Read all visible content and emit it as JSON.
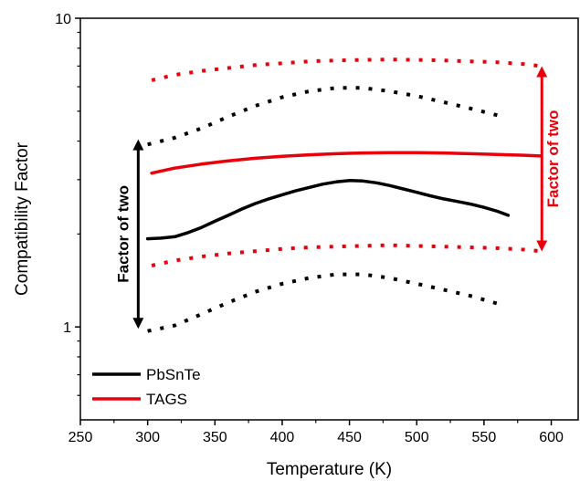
{
  "chart_data": {
    "type": "line",
    "title": "",
    "xlabel": "Temperature (K)",
    "ylabel": "Compatibility Factor",
    "xlim": [
      250,
      620
    ],
    "ylim": [
      0.5,
      10
    ],
    "yscale": "log",
    "xticks": [
      250,
      300,
      350,
      400,
      450,
      500,
      550,
      600
    ],
    "yticks": [
      1,
      10
    ],
    "grid": false,
    "legend_position": "bottom-left",
    "colors": {
      "pbsnte": "#000000",
      "tags": "#e8000b"
    },
    "series": [
      {
        "name": "PbSnTe",
        "key": "pbsnte",
        "style": "solid",
        "x": [
          300,
          310,
          320,
          330,
          340,
          350,
          360,
          370,
          380,
          390,
          400,
          410,
          420,
          430,
          440,
          450,
          460,
          470,
          480,
          490,
          500,
          510,
          520,
          530,
          540,
          550,
          560,
          568
        ],
        "y": [
          1.93,
          1.94,
          1.96,
          2.02,
          2.1,
          2.2,
          2.3,
          2.41,
          2.51,
          2.6,
          2.68,
          2.76,
          2.83,
          2.9,
          2.95,
          2.98,
          2.97,
          2.93,
          2.87,
          2.8,
          2.73,
          2.66,
          2.6,
          2.55,
          2.5,
          2.44,
          2.37,
          2.3
        ]
      },
      {
        "name": "TAGS",
        "key": "tags",
        "style": "solid",
        "x": [
          303,
          320,
          340,
          360,
          380,
          400,
          420,
          440,
          460,
          480,
          500,
          520,
          540,
          560,
          580,
          592
        ],
        "y": [
          3.15,
          3.27,
          3.37,
          3.45,
          3.52,
          3.57,
          3.61,
          3.64,
          3.66,
          3.67,
          3.67,
          3.66,
          3.64,
          3.62,
          3.6,
          3.58
        ]
      },
      {
        "name": "",
        "key": "pbsnte",
        "style": "dotted",
        "x": [
          300,
          320,
          340,
          360,
          380,
          400,
          420,
          440,
          460,
          480,
          500,
          520,
          540,
          560
        ],
        "y": [
          3.9,
          4.1,
          4.4,
          4.8,
          5.2,
          5.55,
          5.8,
          5.95,
          5.95,
          5.8,
          5.6,
          5.35,
          5.1,
          4.85
        ]
      },
      {
        "name": "",
        "key": "pbsnte",
        "style": "dotted",
        "x": [
          300,
          320,
          340,
          360,
          380,
          400,
          420,
          440,
          460,
          480,
          500,
          520,
          540,
          560
        ],
        "y": [
          0.97,
          1.01,
          1.1,
          1.2,
          1.3,
          1.38,
          1.44,
          1.48,
          1.48,
          1.44,
          1.38,
          1.32,
          1.26,
          1.19
        ]
      },
      {
        "name": "",
        "key": "tags",
        "style": "dotted",
        "x": [
          303,
          320,
          340,
          360,
          380,
          400,
          420,
          440,
          460,
          480,
          500,
          520,
          540,
          560,
          580,
          592
        ],
        "y": [
          6.3,
          6.55,
          6.75,
          6.9,
          7.05,
          7.15,
          7.25,
          7.3,
          7.33,
          7.35,
          7.33,
          7.3,
          7.25,
          7.2,
          7.1,
          7.0
        ]
      },
      {
        "name": "",
        "key": "tags",
        "style": "dotted",
        "x": [
          303,
          320,
          340,
          360,
          380,
          400,
          420,
          440,
          460,
          480,
          500,
          520,
          540,
          560,
          580,
          592
        ],
        "y": [
          1.58,
          1.64,
          1.69,
          1.73,
          1.76,
          1.79,
          1.81,
          1.82,
          1.83,
          1.84,
          1.83,
          1.82,
          1.81,
          1.8,
          1.78,
          1.76
        ]
      }
    ],
    "annotations": [
      {
        "text": "Factor of two",
        "key": "pbsnte",
        "x": 293,
        "y_from": 1.0,
        "y_to": 4.0
      },
      {
        "text": "Factor of two",
        "key": "tags",
        "x": 593,
        "y_from": 1.78,
        "y_to": 6.9
      }
    ]
  }
}
